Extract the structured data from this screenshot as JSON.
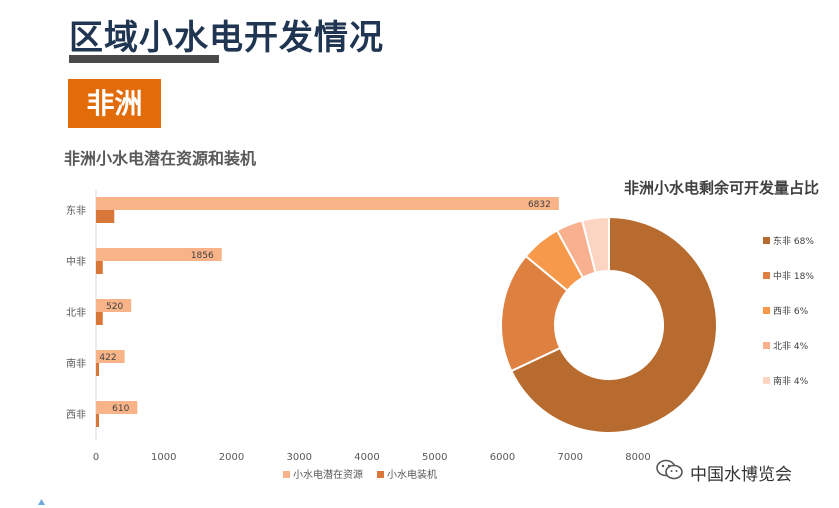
{
  "page": {
    "title": "区域小水电开发情况",
    "region": "非洲",
    "watermark": "中国水博览会"
  },
  "colors": {
    "title": "#1f3552",
    "badge": "#e36c0a",
    "potential": "#f8b488",
    "installed": "#d9773a"
  },
  "chart_data": [
    {
      "type": "bar",
      "orientation": "horizontal",
      "title": "非洲小水电潜在资源和装机",
      "categories": [
        "东非",
        "中非",
        "北非",
        "南非",
        "西非"
      ],
      "series": [
        {
          "name": "小水电潜在资源",
          "values": [
            6832,
            1856,
            520,
            422,
            610
          ],
          "color": "#f8b488"
        },
        {
          "name": "小水电装机",
          "values": [
            270,
            100,
            100,
            40,
            40
          ],
          "color": "#d9773a"
        }
      ],
      "xlim": [
        0,
        8000
      ],
      "xticks": [
        0,
        1000,
        2000,
        3000,
        4000,
        5000,
        6000,
        7000,
        8000
      ],
      "legend": "bottom",
      "grid": false
    },
    {
      "type": "pie",
      "donut": true,
      "title": "非洲小水电剩余可开发量占比",
      "labels": [
        "东非 68%",
        "中非 18%",
        "西非 6%",
        "北非 4%",
        "南非 4%"
      ],
      "values": [
        68,
        18,
        6,
        4,
        4
      ],
      "colors": [
        "#b86b2e",
        "#de8140",
        "#f7994a",
        "#f8b08f",
        "#fbd4c2"
      ],
      "legend": "right"
    }
  ]
}
